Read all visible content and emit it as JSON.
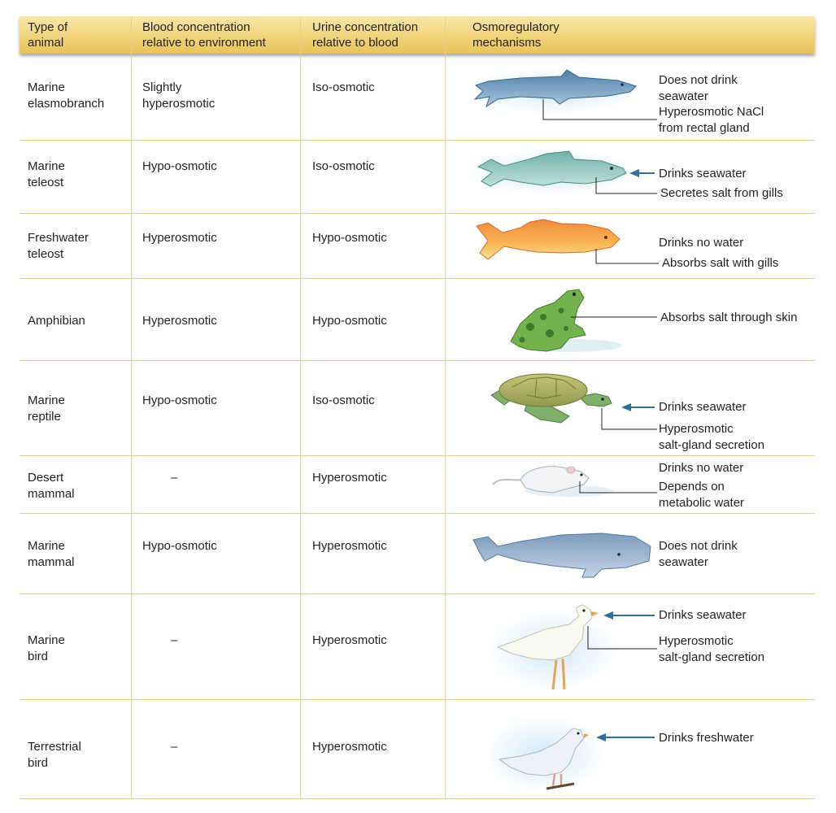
{
  "header": {
    "col1": "Type of\nanimal",
    "col2": "Blood concentration\nrelative to environment",
    "col3": "Urine concentration\nrelative to blood",
    "col4": "Osmoregulatory\nmechanisms"
  },
  "rows": [
    {
      "animal": "Marine\nelasmobranch",
      "blood": "Slightly\nhyperosmotic",
      "urine": "Iso-osmotic",
      "icon": "shark-icon",
      "labels": [
        "Does not drink\nseawater",
        "Hyperosmotic NaCl\nfrom rectal gland"
      ]
    },
    {
      "animal": "Marine\nteleost",
      "blood": "Hypo-osmotic",
      "urine": "Iso-osmotic",
      "icon": "marine-fish-icon",
      "labels": [
        "Drinks seawater",
        "Secretes salt from gills"
      ]
    },
    {
      "animal": "Freshwater\nteleost",
      "blood": "Hyperosmotic",
      "urine": "Hypo-osmotic",
      "icon": "freshwater-fish-icon",
      "labels": [
        "Drinks no water",
        "Absorbs salt  with gills"
      ]
    },
    {
      "animal": "Amphibian",
      "blood": "Hyperosmotic",
      "urine": "Hypo-osmotic",
      "icon": "frog-icon",
      "labels": [
        "Absorbs salt through skin"
      ]
    },
    {
      "animal": "Marine\nreptile",
      "blood": "Hypo-osmotic",
      "urine": "Iso-osmotic",
      "icon": "turtle-icon",
      "labels": [
        "Drinks seawater",
        "Hyperosmotic\nsalt-gland secretion"
      ]
    },
    {
      "animal": "Desert\nmammal",
      "blood": "–",
      "urine": "Hyperosmotic",
      "icon": "rat-icon",
      "labels": [
        "Drinks no water",
        "Depends on\nmetabolic water"
      ]
    },
    {
      "animal": "Marine\nmammal",
      "blood": "Hypo-osmotic",
      "urine": "Hyperosmotic",
      "icon": "whale-icon",
      "labels": [
        "Does not drink\nseawater"
      ]
    },
    {
      "animal": "Marine\nbird",
      "blood": "–",
      "urine": "Hyperosmotic",
      "icon": "gull-icon",
      "labels": [
        "Drinks seawater",
        "Hyperosmotic\nsalt-gland secretion"
      ]
    },
    {
      "animal": "Terrestrial\nbird",
      "blood": "–",
      "urine": "Hyperosmotic",
      "icon": "dove-icon",
      "labels": [
        "Drinks freshwater"
      ]
    }
  ],
  "colors": {
    "header": "#f1d47a",
    "rule": "#e2d08b",
    "arrow": "#2f6f9a",
    "leader": "#231f20"
  }
}
